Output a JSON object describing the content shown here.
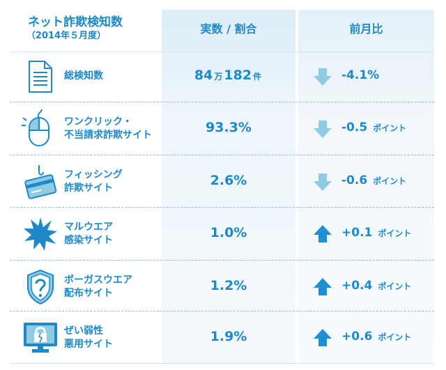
{
  "header": {
    "title": "ネット詐欺検知数",
    "subtitle": "（2014年５月度）",
    "col_value": "実数 / 割合",
    "col_prev": "前月比"
  },
  "colors": {
    "text": "#1e88c8",
    "arrow_down": "#8fcbe3",
    "arrow_up": "#1f8fd4"
  },
  "rows": [
    {
      "icon": "document-icon",
      "label1": "総検知数",
      "label2": "",
      "value_a": "84",
      "unit_a": "万",
      "value_b": "182",
      "unit_b": "件",
      "direction": "down",
      "change": "-4.1%",
      "change_unit": ""
    },
    {
      "icon": "mouse-icon",
      "label1": "ワンクリック・",
      "label2": "不当請求詐欺サイト",
      "value_a": "93.3%",
      "unit_a": "",
      "value_b": "",
      "unit_b": "",
      "direction": "down",
      "change": "-0.5",
      "change_unit": "ポイント"
    },
    {
      "icon": "fishing-card-icon",
      "label1": "フィッシング",
      "label2": "詐欺サイト",
      "value_a": "2.6%",
      "unit_a": "",
      "value_b": "",
      "unit_b": "",
      "direction": "down",
      "change": "-0.6",
      "change_unit": "ポイント"
    },
    {
      "icon": "malware-burst-icon",
      "label1": "マルウエア",
      "label2": "感染サイト",
      "value_a": "1.0%",
      "unit_a": "",
      "value_b": "",
      "unit_b": "",
      "direction": "up",
      "change": "+0.1",
      "change_unit": "ポイント"
    },
    {
      "icon": "question-shield-icon",
      "label1": "ボーガスウエア",
      "label2": "配布サイト",
      "value_a": "1.2%",
      "unit_a": "",
      "value_b": "",
      "unit_b": "",
      "direction": "up",
      "change": "+0.4",
      "change_unit": "ポイント"
    },
    {
      "icon": "broken-lock-monitor-icon",
      "label1": "ぜい弱性",
      "label2": "悪用サイト",
      "value_a": "1.9%",
      "unit_a": "",
      "value_b": "",
      "unit_b": "",
      "direction": "up",
      "change": "+0.6",
      "change_unit": "ポイント"
    }
  ]
}
